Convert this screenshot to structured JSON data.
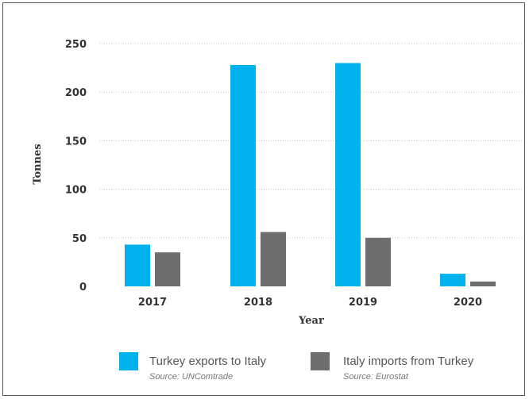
{
  "chart_data": {
    "type": "bar",
    "categories": [
      "2017",
      "2018",
      "2019",
      "2020"
    ],
    "series": [
      {
        "name": "Turkey exports to Italy",
        "source": "Source: UNComtrade",
        "color": "#00b2ec",
        "values": [
          43,
          228,
          230,
          13
        ]
      },
      {
        "name": "Italy imports from Turkey",
        "source": "Source: Eurostat",
        "color": "#6e6e6e",
        "values": [
          35,
          56,
          50,
          5
        ]
      }
    ],
    "xlabel": "Year",
    "ylabel": "Tonnes",
    "ylim": [
      0,
      250
    ],
    "yticks": [
      "0",
      "50",
      "100",
      "150",
      "200",
      "250"
    ],
    "grid": true,
    "legend_position": "bottom"
  }
}
